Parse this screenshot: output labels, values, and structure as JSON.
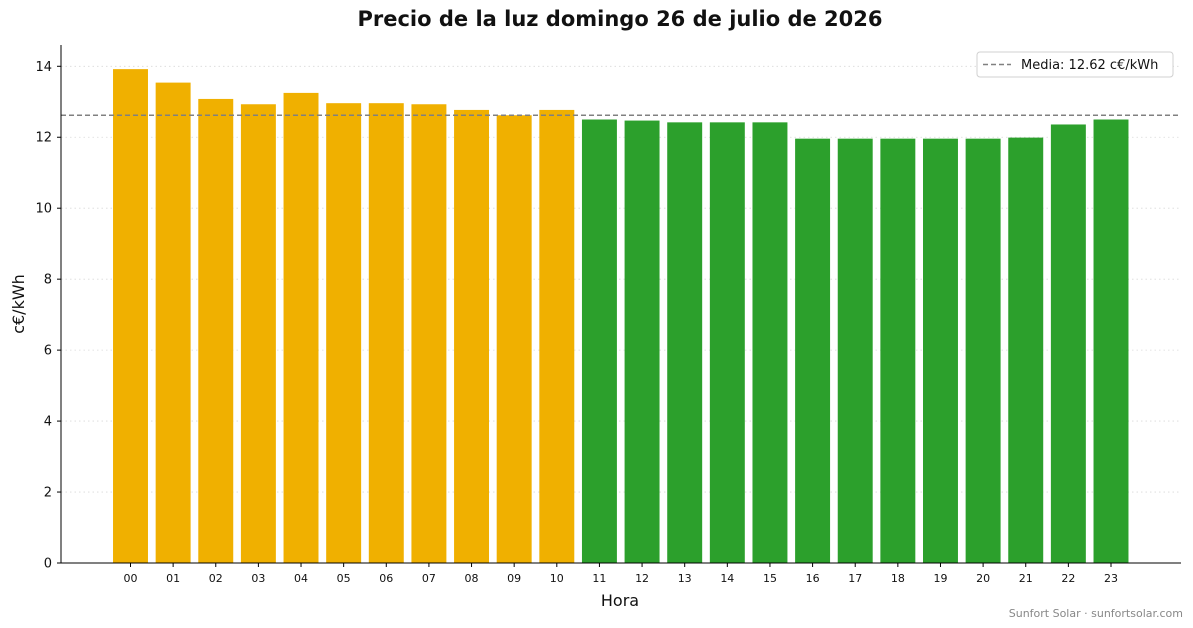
{
  "chart_data": {
    "type": "bar",
    "title": "Precio de la luz domingo 26 de julio de 2026",
    "xlabel": "Hora",
    "ylabel": "c€/kWh",
    "ylim": [
      0,
      14.6
    ],
    "yticks": [
      0,
      2,
      4,
      6,
      8,
      10,
      12,
      14
    ],
    "grid": "horizontal dotted",
    "legend_position": "top-right",
    "categories": [
      "00",
      "01",
      "02",
      "03",
      "04",
      "05",
      "06",
      "07",
      "08",
      "09",
      "10",
      "11",
      "12",
      "13",
      "14",
      "15",
      "16",
      "17",
      "18",
      "19",
      "20",
      "21",
      "22",
      "23"
    ],
    "values": [
      13.92,
      13.54,
      13.08,
      12.93,
      13.25,
      12.96,
      12.96,
      12.93,
      12.77,
      12.62,
      12.77,
      12.5,
      12.47,
      12.42,
      12.42,
      12.42,
      11.96,
      11.96,
      11.96,
      11.96,
      11.96,
      11.99,
      12.36,
      12.5
    ],
    "mean": {
      "value": 12.62,
      "label": "Media: 12.62 c€/kWh",
      "color": "#808080"
    },
    "colors": {
      "above_mean": "#f0b000",
      "below_mean": "#2ca02c"
    },
    "footer": "Sunfort Solar · sunfortsolar.com"
  }
}
